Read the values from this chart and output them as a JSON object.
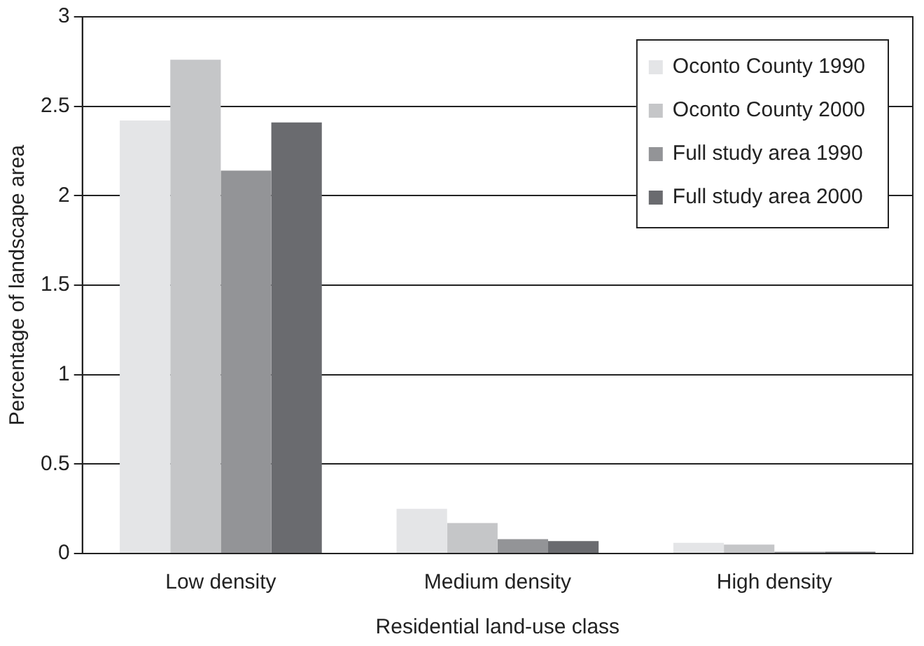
{
  "chart_data": {
    "type": "bar",
    "xlabel": "Residential land-use class",
    "ylabel": "Percentage of landscape area",
    "categories": [
      "Low density",
      "Medium density",
      "High density"
    ],
    "series": [
      {
        "name": "Oconto County 1990",
        "color": "#e4e5e7",
        "values": [
          2.42,
          0.25,
          0.06
        ]
      },
      {
        "name": "Oconto County 2000",
        "color": "#c5c6c8",
        "values": [
          2.76,
          0.17,
          0.05
        ]
      },
      {
        "name": "Full study area 1990",
        "color": "#939497",
        "values": [
          2.14,
          0.08,
          0.01
        ]
      },
      {
        "name": "Full study area 2000",
        "color": "#6a6b6f",
        "values": [
          2.41,
          0.07,
          0.01
        ]
      }
    ],
    "ylim": [
      0,
      3
    ],
    "yticks": [
      0,
      0.5,
      1,
      1.5,
      2,
      2.5,
      3
    ],
    "grid": "y",
    "legend": "top right"
  }
}
